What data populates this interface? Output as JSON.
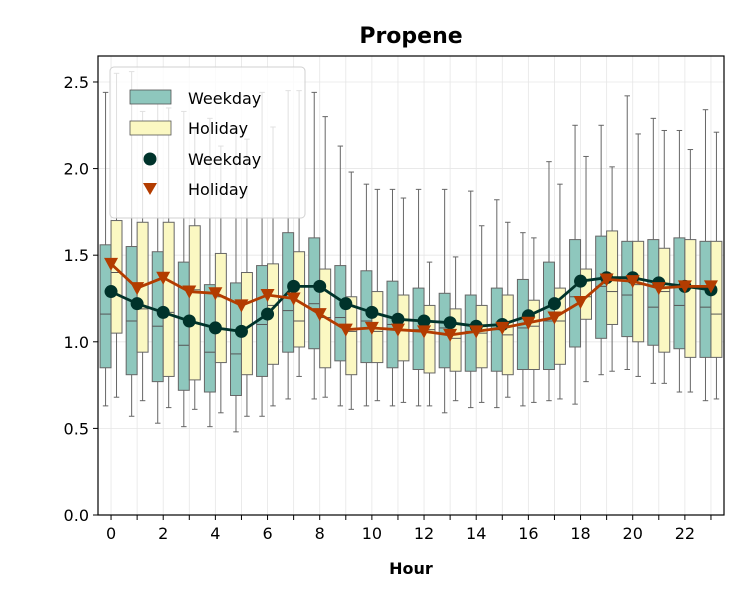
{
  "chart_data": {
    "type": "box",
    "title": "Propene",
    "xlabel": "Hour",
    "ylabel": "",
    "xlim": [
      -0.5,
      23.5
    ],
    "ylim": [
      0,
      2.65
    ],
    "x_ticks": [
      0,
      2,
      4,
      6,
      8,
      10,
      12,
      14,
      16,
      18,
      20,
      22
    ],
    "y_ticks": [
      0.0,
      0.5,
      1.0,
      1.5,
      2.0,
      2.5
    ],
    "grid": true,
    "legend_position": "top-left",
    "hours": [
      0,
      1,
      2,
      3,
      4,
      5,
      6,
      7,
      8,
      9,
      10,
      11,
      12,
      13,
      14,
      15,
      16,
      17,
      18,
      19,
      20,
      21,
      22,
      23
    ],
    "legend": {
      "box_weekday": "Weekday",
      "box_holiday": "Holiday",
      "line_weekday": "Weekday",
      "line_holiday": "Holiday"
    },
    "series": [
      {
        "name": "Weekday",
        "kind": "box",
        "color": "#8ec7bd",
        "q1": [
          0.85,
          0.81,
          0.77,
          0.72,
          0.71,
          0.69,
          0.8,
          0.94,
          0.96,
          0.89,
          0.88,
          0.85,
          0.84,
          0.85,
          0.83,
          0.83,
          0.84,
          0.84,
          0.97,
          1.02,
          1.03,
          0.98,
          0.96,
          0.91
        ],
        "median": [
          1.16,
          1.12,
          1.09,
          0.98,
          0.94,
          0.93,
          1.1,
          1.18,
          1.22,
          1.14,
          1.12,
          1.1,
          1.07,
          1.08,
          1.06,
          1.07,
          1.08,
          1.12,
          1.26,
          1.32,
          1.27,
          1.2,
          1.21,
          1.2
        ],
        "q3": [
          1.56,
          1.55,
          1.52,
          1.46,
          1.33,
          1.34,
          1.44,
          1.63,
          1.6,
          1.44,
          1.41,
          1.35,
          1.31,
          1.28,
          1.27,
          1.31,
          1.36,
          1.46,
          1.59,
          1.61,
          1.58,
          1.59,
          1.6,
          1.58
        ],
        "whisker_low": [
          0.63,
          0.57,
          0.53,
          0.51,
          0.51,
          0.48,
          0.57,
          0.67,
          0.67,
          0.63,
          0.63,
          0.63,
          0.63,
          0.59,
          0.62,
          0.62,
          0.63,
          0.66,
          0.64,
          0.81,
          0.84,
          0.76,
          0.71,
          0.66
        ],
        "whisker_high": [
          2.44,
          2.56,
          2.4,
          2.33,
          2.29,
          2.24,
          2.44,
          2.45,
          2.44,
          2.13,
          1.91,
          1.88,
          1.88,
          1.88,
          1.87,
          1.82,
          1.63,
          2.04,
          2.25,
          2.25,
          2.42,
          2.29,
          2.22,
          2.34
        ]
      },
      {
        "name": "Holiday",
        "kind": "box",
        "color": "#fbf8c2",
        "q1": [
          1.05,
          0.94,
          0.8,
          0.78,
          0.88,
          0.81,
          0.87,
          0.97,
          0.85,
          0.81,
          0.88,
          0.89,
          0.82,
          0.83,
          0.85,
          0.81,
          0.84,
          0.87,
          1.13,
          1.1,
          1.0,
          0.94,
          0.91,
          0.91
        ],
        "median": [
          1.4,
          1.19,
          1.17,
          1.3,
          1.26,
          1.23,
          1.21,
          1.12,
          1.14,
          1.06,
          1.06,
          1.07,
          1.07,
          1.02,
          1.05,
          1.04,
          1.09,
          1.12,
          1.26,
          1.29,
          1.33,
          1.29,
          1.31,
          1.16
        ],
        "q3": [
          1.7,
          1.69,
          1.69,
          1.67,
          1.51,
          1.4,
          1.45,
          1.52,
          1.42,
          1.26,
          1.29,
          1.27,
          1.21,
          1.19,
          1.21,
          1.27,
          1.24,
          1.31,
          1.42,
          1.64,
          1.58,
          1.54,
          1.59,
          1.58
        ],
        "whisker_low": [
          0.68,
          0.66,
          0.62,
          0.61,
          0.59,
          0.57,
          0.63,
          0.8,
          0.68,
          0.61,
          0.66,
          0.65,
          0.63,
          0.66,
          0.65,
          0.68,
          0.65,
          0.67,
          0.77,
          0.83,
          0.8,
          0.76,
          0.71,
          0.67
        ],
        "whisker_high": [
          2.55,
          2.33,
          2.35,
          2.23,
          2.13,
          2.17,
          2.24,
          2.45,
          2.3,
          1.98,
          1.88,
          1.83,
          1.46,
          1.49,
          1.67,
          1.69,
          1.6,
          1.91,
          2.07,
          2.01,
          2.2,
          2.22,
          2.11,
          2.21
        ]
      },
      {
        "name": "Weekday",
        "kind": "line",
        "color": "#00332b",
        "marker": "circle",
        "values": [
          1.29,
          1.22,
          1.17,
          1.12,
          1.08,
          1.06,
          1.16,
          1.32,
          1.32,
          1.22,
          1.17,
          1.13,
          1.12,
          1.11,
          1.09,
          1.1,
          1.15,
          1.22,
          1.35,
          1.37,
          1.37,
          1.34,
          1.32,
          1.3
        ]
      },
      {
        "name": "Holiday",
        "kind": "line",
        "color": "#b33c00",
        "marker": "triangle-down",
        "values": [
          1.45,
          1.31,
          1.37,
          1.29,
          1.28,
          1.21,
          1.27,
          1.25,
          1.16,
          1.07,
          1.08,
          1.07,
          1.06,
          1.04,
          1.06,
          1.08,
          1.11,
          1.14,
          1.23,
          1.36,
          1.35,
          1.31,
          1.32,
          1.32
        ]
      }
    ]
  }
}
